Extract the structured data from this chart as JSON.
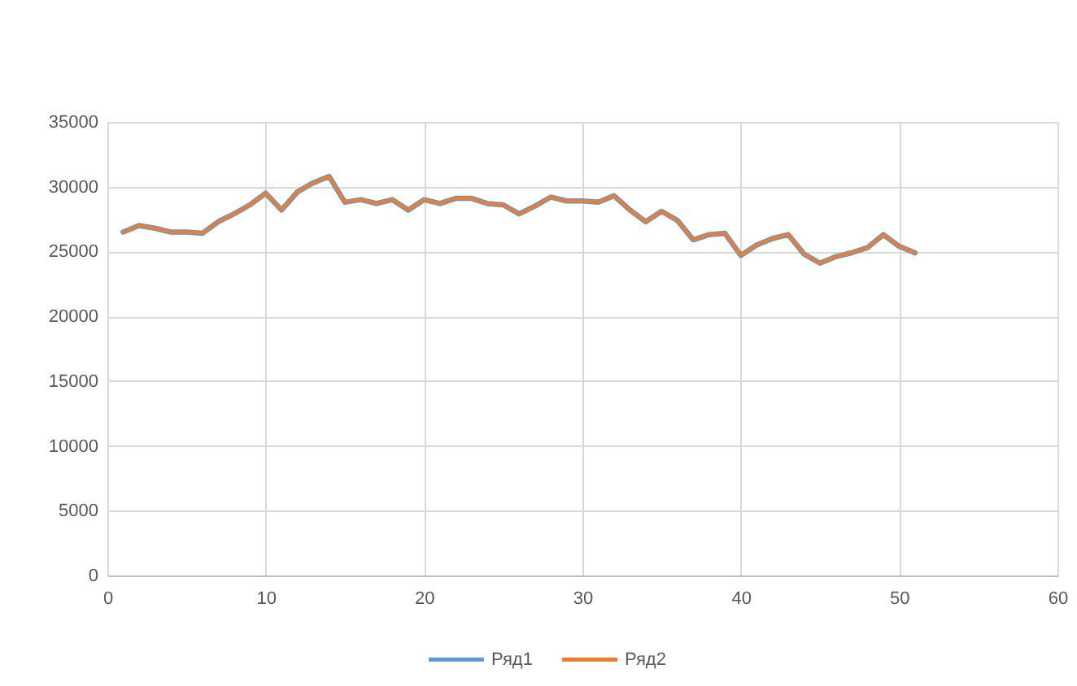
{
  "chart_data": {
    "type": "line",
    "x": [
      1,
      2,
      3,
      4,
      5,
      6,
      7,
      8,
      9,
      10,
      11,
      12,
      13,
      14,
      15,
      16,
      17,
      18,
      19,
      20,
      21,
      22,
      23,
      24,
      25,
      26,
      27,
      28,
      29,
      30,
      31,
      32,
      33,
      34,
      35,
      36,
      37,
      38,
      39,
      40,
      41,
      42,
      43,
      44,
      45,
      46,
      47,
      48,
      49,
      50,
      51
    ],
    "series": [
      {
        "name": "Ряд1",
        "color": "#5b9bd5",
        "values": [
          26500,
          27000,
          26800,
          26500,
          26500,
          26400,
          27300,
          27900,
          28600,
          29500,
          28200,
          29600,
          30300,
          30800,
          28800,
          29000,
          28700,
          29000,
          28200,
          29000,
          28700,
          29100,
          29100,
          28700,
          28600,
          27900,
          28500,
          29200,
          28900,
          28900,
          28800,
          29300,
          28200,
          27300,
          28100,
          27400,
          25900,
          26300,
          26400,
          24700,
          25500,
          26000,
          26300,
          24800,
          24100,
          24600,
          24900,
          25300,
          26300,
          25400,
          24900
        ]
      },
      {
        "name": "Ряд2",
        "color": "#ed7d31",
        "values": [
          26500,
          27000,
          26800,
          26500,
          26500,
          26400,
          27300,
          27900,
          28600,
          29500,
          28200,
          29600,
          30300,
          30800,
          28800,
          29000,
          28700,
          29000,
          28200,
          29000,
          28700,
          29100,
          29100,
          28700,
          28600,
          27900,
          28500,
          29200,
          28900,
          28900,
          28800,
          29300,
          28200,
          27300,
          28100,
          27400,
          25900,
          26300,
          26400,
          24700,
          25500,
          26000,
          26300,
          24800,
          24100,
          24600,
          24900,
          25300,
          26300,
          25400,
          24900
        ]
      }
    ],
    "xlim": [
      0,
      60
    ],
    "xticks": [
      0,
      10,
      20,
      30,
      40,
      50,
      60
    ],
    "ylim": [
      0,
      35000
    ],
    "yticks": [
      0,
      5000,
      10000,
      15000,
      20000,
      25000,
      30000,
      35000
    ],
    "grid": true,
    "legend": "bottom",
    "marker": "none",
    "line_style": "solid"
  }
}
